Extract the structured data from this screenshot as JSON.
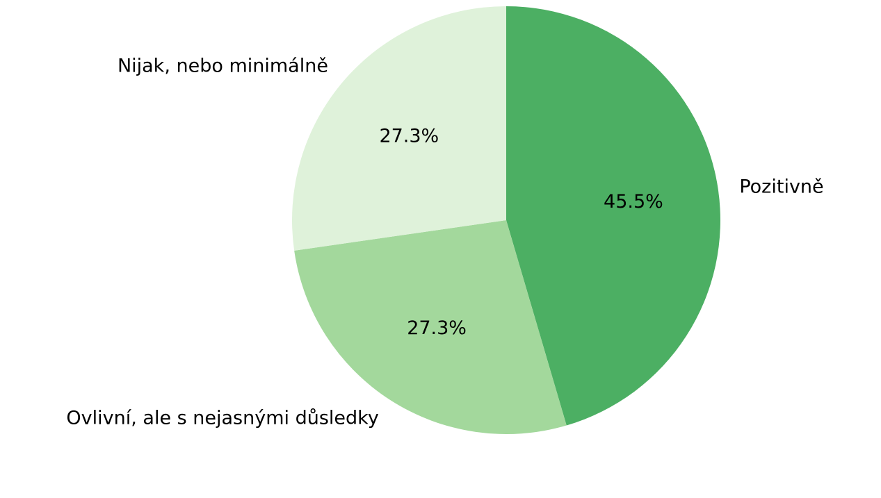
{
  "chart_data": {
    "type": "pie",
    "title": "",
    "slices": [
      {
        "label": "Pozitivně",
        "value": 45.5,
        "pct_label": "45.5%",
        "color": "#4caf63"
      },
      {
        "label": "Ovlivní, ale s nejasnými důsledky",
        "value": 27.3,
        "pct_label": "27.3%",
        "color": "#a3d89c"
      },
      {
        "label": "Nijak, nebo minimálně",
        "value": 27.3,
        "pct_label": "27.3%",
        "color": "#dff2da"
      }
    ],
    "start_angle_deg": 90,
    "direction": "clockwise",
    "legend": "none"
  }
}
